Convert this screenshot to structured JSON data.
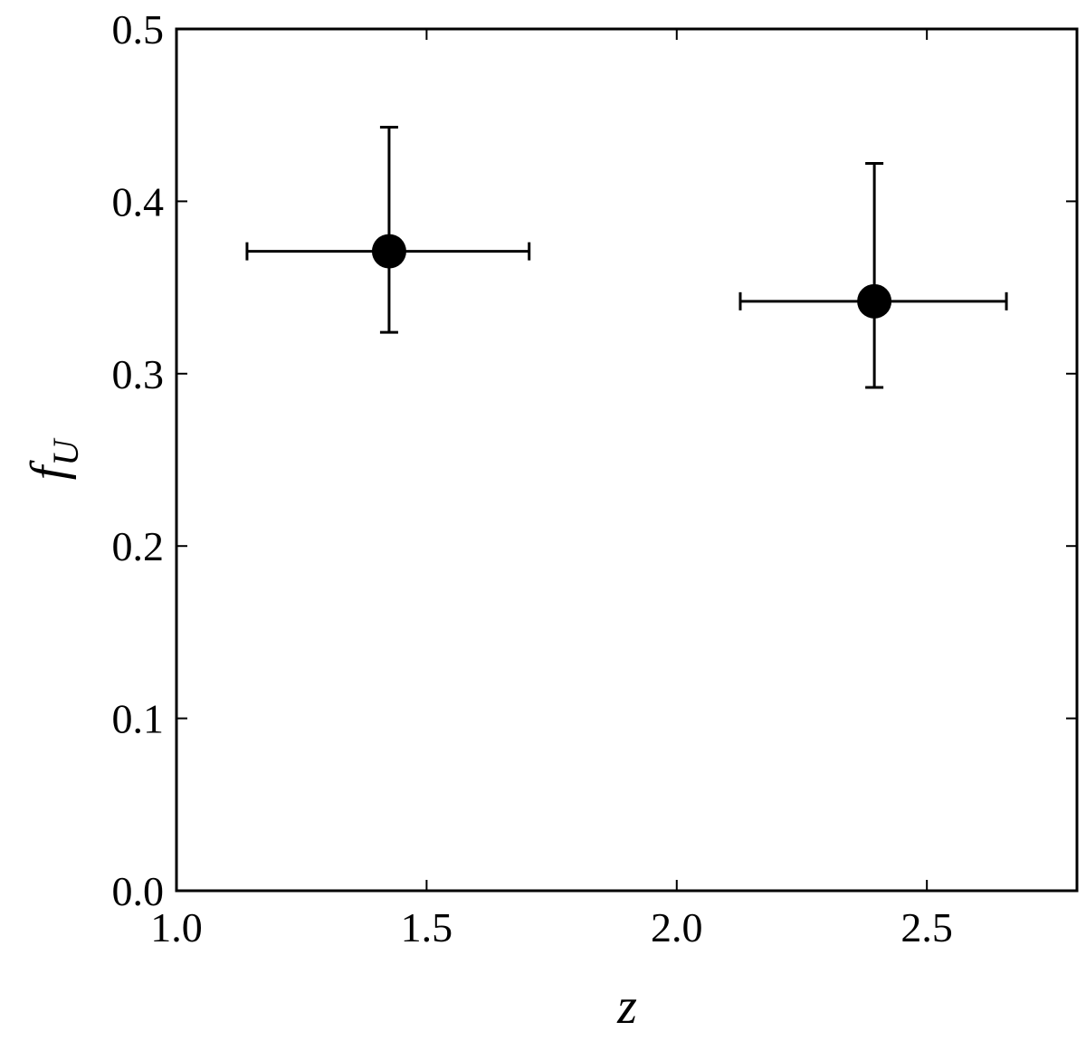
{
  "chart_data": {
    "type": "scatter",
    "xlabel": "z",
    "ylabel": "f",
    "ylabel_subscript": "U",
    "xlim": [
      1.0,
      2.8
    ],
    "ylim": [
      0.0,
      0.5
    ],
    "xticks": [
      {
        "value": 1.0,
        "label": "1.0"
      },
      1.5,
      {
        "value": 2.0,
        "label": "2.0"
      },
      2.5
    ],
    "yticks": [
      {
        "value": 0.0,
        "label": "0.0"
      },
      0.1,
      0.2,
      0.3,
      0.4,
      0.5
    ],
    "grid": false,
    "series": [
      {
        "color": "#000000",
        "x": [
          1.425,
          2.395
        ],
        "y": [
          0.371,
          0.342
        ],
        "xerr_minus": [
          0.284,
          0.268
        ],
        "xerr_plus": [
          0.28,
          0.264
        ],
        "yerr_minus": [
          0.047,
          0.05
        ],
        "yerr_plus": [
          0.072,
          0.08
        ]
      }
    ]
  }
}
